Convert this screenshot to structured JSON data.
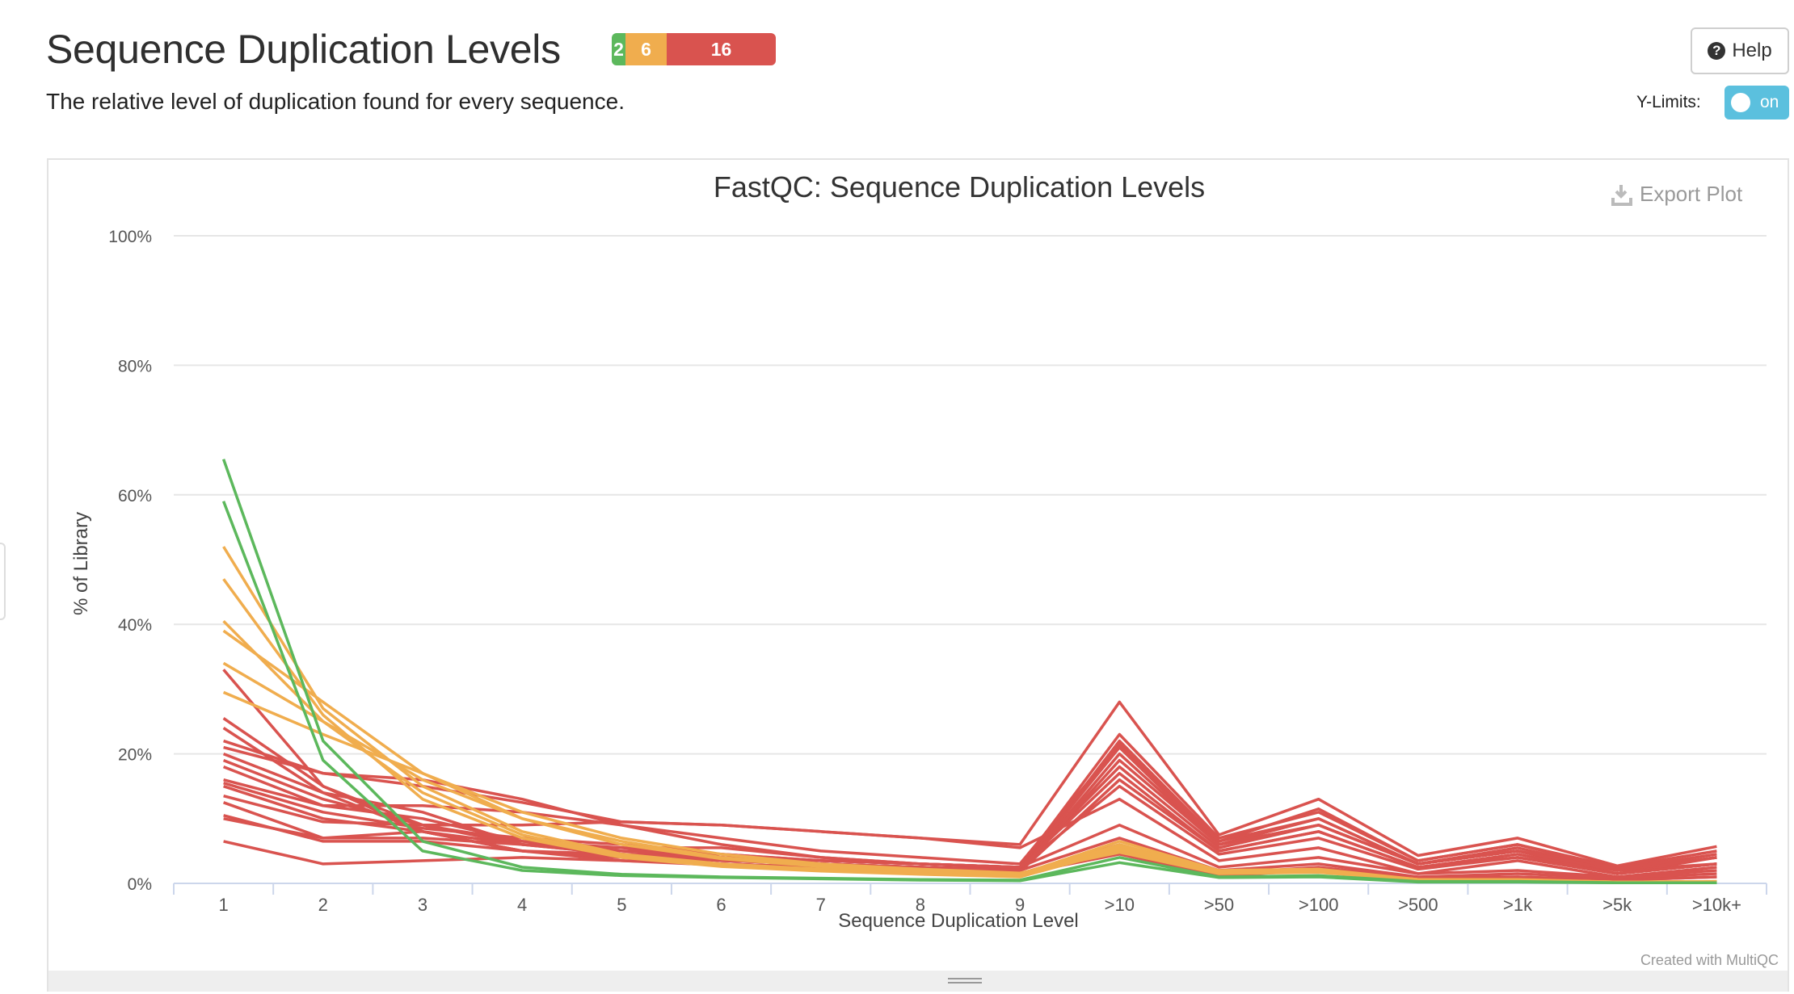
{
  "header": {
    "title": "Sequence Duplication Levels",
    "subtitle": "The relative level of duplication found for every sequence.",
    "status": [
      {
        "count": "2",
        "color": "#5cb85c",
        "fraction": 0.083
      },
      {
        "count": "6",
        "color": "#f0ad4e",
        "fraction": 0.25
      },
      {
        "count": "16",
        "color": "#d9534f",
        "fraction": 0.667
      }
    ],
    "help_label": "Help",
    "ylimits_label": "Y-Limits:",
    "ylimits_toggle": "on"
  },
  "plot": {
    "export_label": "Export Plot",
    "credit": "Created with MultiQC"
  },
  "chart_data": {
    "type": "line",
    "title": "FastQC: Sequence Duplication Levels",
    "xlabel": "Sequence Duplication Level",
    "ylabel": "% of Library",
    "ylim": [
      0,
      100
    ],
    "yticks": [
      "0%",
      "20%",
      "40%",
      "60%",
      "80%",
      "100%"
    ],
    "categories": [
      "1",
      "2",
      "3",
      "4",
      "5",
      "6",
      "7",
      "8",
      "9",
      ">10",
      ">50",
      ">100",
      ">500",
      ">1k",
      ">5k",
      ">10k+"
    ],
    "grid": true,
    "series": [
      {
        "status": "pass",
        "color": "#5cb85c",
        "values": [
          65.5,
          22,
          6.5,
          2.5,
          1.4,
          1.0,
          0.8,
          0.6,
          0.5,
          4.0,
          1.0,
          1.2,
          0.3,
          0.3,
          0.1,
          0.1
        ]
      },
      {
        "status": "pass",
        "color": "#5cb85c",
        "values": [
          59,
          19,
          5,
          2,
          1.2,
          0.9,
          0.7,
          0.5,
          0.4,
          3.2,
          0.9,
          1.0,
          0.2,
          0.2,
          0.1,
          0.1
        ]
      },
      {
        "status": "warn",
        "color": "#f0ad4e",
        "values": [
          52,
          27,
          15,
          8,
          4.5,
          3.0,
          2.2,
          1.6,
          1.2,
          6.0,
          1.8,
          2.0,
          0.6,
          0.5,
          0.2,
          0.3
        ]
      },
      {
        "status": "warn",
        "color": "#f0ad4e",
        "values": [
          47,
          26,
          13,
          7,
          4.0,
          2.6,
          1.9,
          1.4,
          1.0,
          5.2,
          1.6,
          1.8,
          0.5,
          0.5,
          0.2,
          0.2
        ]
      },
      {
        "status": "warn",
        "color": "#f0ad4e",
        "values": [
          40.5,
          25,
          14,
          7.5,
          4.2,
          2.8,
          2.0,
          1.5,
          1.1,
          5.5,
          1.7,
          1.9,
          0.5,
          0.5,
          0.2,
          0.3
        ]
      },
      {
        "status": "warn",
        "color": "#f0ad4e",
        "values": [
          39,
          28,
          17,
          10,
          6.0,
          3.8,
          2.6,
          1.9,
          1.4,
          6.5,
          2.0,
          2.2,
          0.6,
          0.6,
          0.2,
          0.3
        ]
      },
      {
        "status": "warn",
        "color": "#f0ad4e",
        "values": [
          34,
          25,
          16,
          10,
          6.5,
          4.0,
          2.8,
          2.0,
          1.5,
          5.8,
          1.8,
          2.0,
          0.6,
          0.5,
          0.2,
          0.3
        ]
      },
      {
        "status": "warn",
        "color": "#f0ad4e",
        "values": [
          29.5,
          23,
          17,
          11,
          7.0,
          4.5,
          3.0,
          2.2,
          1.6,
          4.8,
          1.5,
          1.7,
          0.5,
          0.5,
          0.2,
          0.2
        ]
      },
      {
        "status": "fail",
        "color": "#d9534f",
        "values": [
          33,
          15,
          8,
          5,
          3.5,
          2.8,
          2.4,
          2.1,
          1.9,
          20,
          6,
          9,
          3,
          5,
          2,
          4
        ]
      },
      {
        "status": "fail",
        "color": "#d9534f",
        "values": [
          25.5,
          15,
          9,
          6,
          4.5,
          3.5,
          3.0,
          2.5,
          2.0,
          22,
          6.5,
          10,
          3,
          5.5,
          2,
          3
        ]
      },
      {
        "status": "fail",
        "color": "#d9534f",
        "values": [
          24,
          14,
          8,
          6,
          4.5,
          3.5,
          3.0,
          2.5,
          2.2,
          21,
          6,
          10,
          3,
          5,
          1.5,
          4
        ]
      },
      {
        "status": "fail",
        "color": "#d9534f",
        "values": [
          22,
          17,
          16,
          13,
          9,
          6,
          4,
          3,
          2.5,
          23,
          7,
          11,
          3.5,
          6,
          2.5,
          5
        ]
      },
      {
        "status": "fail",
        "color": "#d9534f",
        "values": [
          21,
          17,
          15,
          12.5,
          9.5,
          9,
          8,
          7,
          6,
          28,
          7.5,
          13,
          4.3,
          7,
          2.7,
          5.7
        ]
      },
      {
        "status": "fail",
        "color": "#d9534f",
        "values": [
          20,
          14,
          11,
          6,
          5.5,
          5.5,
          4,
          3,
          2.5,
          18,
          5.5,
          9,
          3,
          5,
          2,
          4
        ]
      },
      {
        "status": "fail",
        "color": "#d9534f",
        "values": [
          19,
          13,
          9,
          6.5,
          5,
          4,
          3.5,
          3,
          2.5,
          17,
          5,
          8,
          2.5,
          4.5,
          1.5,
          3
        ]
      },
      {
        "status": "fail",
        "color": "#d9534f",
        "values": [
          16,
          12,
          10,
          6.5,
          5.5,
          4,
          3,
          2.5,
          2,
          19,
          6,
          9,
          3,
          5,
          2,
          4
        ]
      },
      {
        "status": "fail",
        "color": "#d9534f",
        "values": [
          15,
          10,
          8,
          5,
          4,
          3,
          2.5,
          2,
          1.8,
          16,
          5,
          8,
          2.5,
          4,
          1.5,
          3
        ]
      },
      {
        "status": "fail",
        "color": "#d9534f",
        "values": [
          13.5,
          9.5,
          9,
          9,
          9.5,
          9,
          8,
          7,
          5.5,
          13,
          3.5,
          5.5,
          1.5,
          3.5,
          1.0,
          2.5
        ]
      },
      {
        "status": "fail",
        "color": "#d9534f",
        "values": [
          12.5,
          7,
          7,
          6,
          5,
          4.5,
          3.5,
          3,
          2.5,
          9,
          2.5,
          4,
          1.5,
          2,
          1.0,
          2
        ]
      },
      {
        "status": "fail",
        "color": "#d9534f",
        "values": [
          10.5,
          6.5,
          6.5,
          5,
          4.5,
          4,
          3,
          2.5,
          2,
          7,
          2,
          3,
          1.0,
          1.5,
          0.8,
          1.5
        ]
      },
      {
        "status": "fail",
        "color": "#d9534f",
        "values": [
          10,
          7,
          8,
          5,
          4,
          3,
          2.5,
          2,
          1.5,
          6,
          1.5,
          2.5,
          0.8,
          1.0,
          0.5,
          1.0
        ]
      },
      {
        "status": "fail",
        "color": "#d9534f",
        "values": [
          6.5,
          3,
          3.5,
          4,
          3.5,
          3,
          2.5,
          2,
          1.5,
          4.5,
          1.2,
          2,
          0.8,
          1.0,
          0.5,
          1.0
        ]
      },
      {
        "status": "fail",
        "color": "#d9534f",
        "values": [
          18,
          12,
          12,
          11,
          9,
          7,
          5,
          4,
          3,
          21.5,
          6.5,
          11.5,
          3.5,
          6,
          2.2,
          4.5
        ]
      },
      {
        "status": "fail",
        "color": "#d9534f",
        "values": [
          15.5,
          11,
          8.5,
          7,
          6,
          4.5,
          3.5,
          3,
          2.5,
          15,
          4.5,
          7,
          2.2,
          4,
          1.5,
          3
        ]
      }
    ]
  }
}
